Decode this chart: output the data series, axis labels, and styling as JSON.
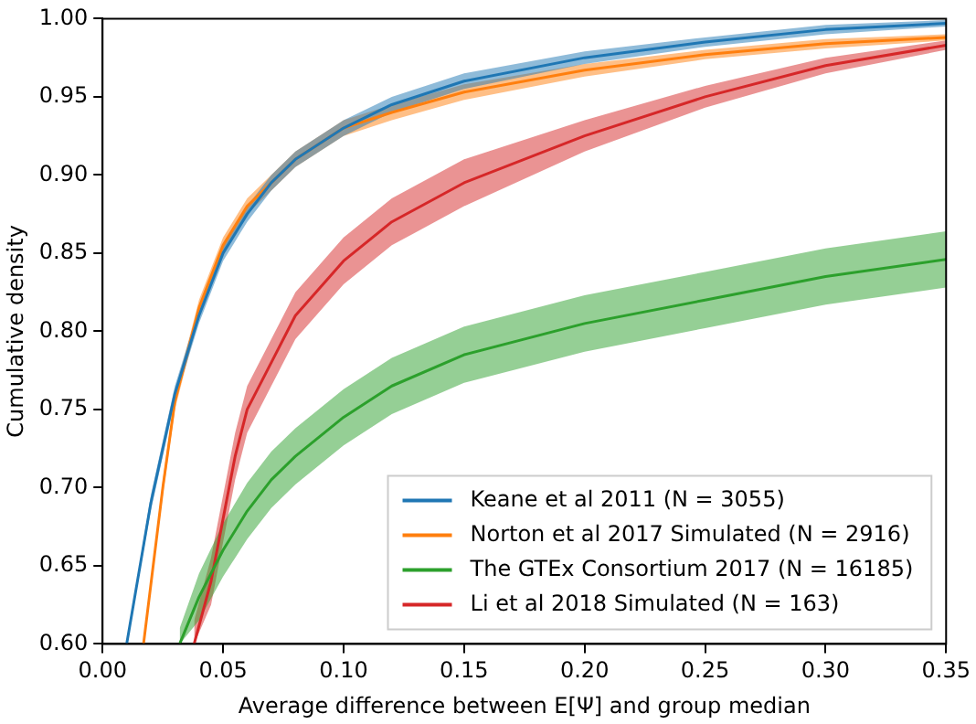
{
  "chart_data": {
    "type": "line",
    "xlabel": "Average difference between E[Ψ] and group median",
    "ylabel": "Cumulative density",
    "xlim": [
      0,
      0.35
    ],
    "ylim": [
      0.6,
      1.0
    ],
    "xticks": [
      {
        "value": 0,
        "label": "0.00"
      },
      0.05,
      {
        "value": 0.1,
        "label": "0.10"
      },
      0.15,
      {
        "value": 0.2,
        "label": "0.20"
      },
      0.25,
      {
        "value": 0.3,
        "label": "0.30"
      },
      0.35
    ],
    "yticks": [
      {
        "value": 0.6,
        "label": "0.60"
      },
      0.65,
      {
        "value": 0.7,
        "label": "0.70"
      },
      0.75,
      {
        "value": 0.8,
        "label": "0.80"
      },
      0.85,
      {
        "value": 0.9,
        "label": "0.90"
      },
      0.95,
      {
        "value": 1,
        "label": "1.00"
      }
    ],
    "grid": false,
    "legend": "bottom right",
    "marker": "none",
    "line_style": "solid",
    "series": [
      {
        "name": "Keane et al 2011 (N = 3055)",
        "color": "#1f77b4",
        "x": [
          0.01,
          0.02,
          0.03,
          0.04,
          0.05,
          0.06,
          0.07,
          0.08,
          0.1,
          0.12,
          0.15,
          0.2,
          0.25,
          0.3,
          0.35
        ],
        "values": [
          0.6,
          0.69,
          0.76,
          0.81,
          0.85,
          0.875,
          0.895,
          0.91,
          0.93,
          0.945,
          0.96,
          0.975,
          0.985,
          0.993,
          0.997
        ],
        "lower": [
          0.6,
          0.685,
          0.755,
          0.805,
          0.845,
          0.87,
          0.89,
          0.905,
          0.925,
          0.94,
          0.955,
          0.971,
          0.982,
          0.99,
          0.995
        ],
        "upper": [
          0.6,
          0.695,
          0.765,
          0.815,
          0.855,
          0.88,
          0.9,
          0.915,
          0.935,
          0.95,
          0.965,
          0.979,
          0.988,
          0.996,
          0.999
        ]
      },
      {
        "name": "Norton et al 2017 Simulated (N = 2916)",
        "color": "#ff7f0e",
        "x": [
          0.017,
          0.025,
          0.03,
          0.04,
          0.05,
          0.06,
          0.08,
          0.1,
          0.12,
          0.15,
          0.2,
          0.25,
          0.3,
          0.35
        ],
        "values": [
          0.6,
          0.7,
          0.755,
          0.815,
          0.855,
          0.88,
          0.91,
          0.93,
          0.94,
          0.953,
          0.967,
          0.977,
          0.984,
          0.988
        ],
        "lower": [
          0.6,
          0.695,
          0.75,
          0.81,
          0.85,
          0.875,
          0.905,
          0.925,
          0.935,
          0.948,
          0.963,
          0.974,
          0.981,
          0.986
        ],
        "upper": [
          0.6,
          0.705,
          0.76,
          0.82,
          0.86,
          0.885,
          0.915,
          0.935,
          0.945,
          0.958,
          0.971,
          0.98,
          0.987,
          0.99
        ]
      },
      {
        "name": "The GTEx Consortium 2017 (N = 16185)",
        "color": "#2ca02c",
        "x": [
          0.032,
          0.04,
          0.05,
          0.06,
          0.07,
          0.08,
          0.1,
          0.12,
          0.15,
          0.2,
          0.25,
          0.3,
          0.35
        ],
        "values": [
          0.6,
          0.63,
          0.66,
          0.685,
          0.705,
          0.72,
          0.745,
          0.765,
          0.785,
          0.805,
          0.82,
          0.835,
          0.846
        ],
        "lower": [
          0.6,
          0.615,
          0.643,
          0.667,
          0.687,
          0.702,
          0.727,
          0.747,
          0.767,
          0.787,
          0.802,
          0.817,
          0.828
        ],
        "upper": [
          0.61,
          0.645,
          0.677,
          0.703,
          0.723,
          0.738,
          0.763,
          0.783,
          0.803,
          0.823,
          0.838,
          0.853,
          0.864
        ]
      },
      {
        "name": "Li et al 2018 Simulated (N = 163)",
        "color": "#d62728",
        "x": [
          0.038,
          0.045,
          0.05,
          0.055,
          0.06,
          0.07,
          0.08,
          0.1,
          0.12,
          0.15,
          0.2,
          0.25,
          0.3,
          0.35
        ],
        "values": [
          0.6,
          0.64,
          0.68,
          0.72,
          0.75,
          0.78,
          0.81,
          0.845,
          0.87,
          0.895,
          0.925,
          0.95,
          0.97,
          0.983
        ],
        "lower": [
          0.6,
          0.625,
          0.665,
          0.705,
          0.735,
          0.765,
          0.795,
          0.83,
          0.855,
          0.88,
          0.915,
          0.943,
          0.965,
          0.98
        ],
        "upper": [
          0.615,
          0.655,
          0.695,
          0.735,
          0.765,
          0.795,
          0.825,
          0.86,
          0.885,
          0.91,
          0.935,
          0.957,
          0.975,
          0.986
        ]
      }
    ]
  }
}
